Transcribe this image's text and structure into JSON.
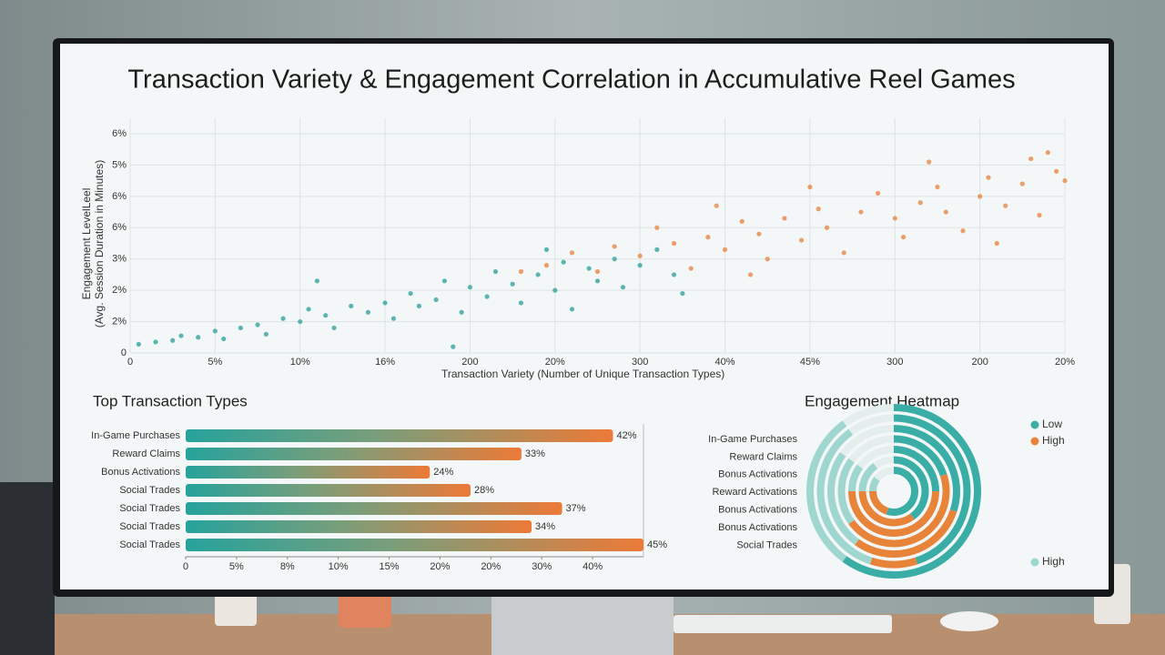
{
  "chart_data": [
    {
      "type": "scatter",
      "title": "Transaction Variety & Engagement Correlation in Accumulative Reel Games",
      "x_label": "Transaction Variety (Number of Unique Transaction Types)",
      "y_label": [
        "Engagement LevelLeel",
        "(Avg. Session Duration in Minutes)"
      ],
      "xlim": [
        0,
        11
      ],
      "ylim": [
        0,
        7
      ],
      "grid": true,
      "xticks": [
        0,
        {
          "value": 1,
          "label": "5%"
        },
        {
          "value": 2,
          "label": "10%"
        },
        {
          "value": 3,
          "label": "16%"
        },
        {
          "value": 4,
          "label": "200"
        },
        {
          "value": 5,
          "label": "20%"
        },
        {
          "value": 6,
          "label": "300"
        },
        {
          "value": 7,
          "label": "40%"
        },
        {
          "value": 8,
          "label": "45%"
        },
        {
          "value": 9,
          "label": "300"
        },
        {
          "value": 10,
          "label": "200"
        },
        {
          "value": 11,
          "label": "20%"
        }
      ],
      "yticks": [
        0,
        {
          "value": 1,
          "label": "2%"
        },
        {
          "value": 2,
          "label": "2%"
        },
        {
          "value": 3,
          "label": "3%"
        },
        {
          "value": 4,
          "label": "6%"
        },
        {
          "value": 5,
          "label": "6%"
        },
        {
          "value": 6,
          "label": "5%"
        },
        {
          "value": 7,
          "label": "6%"
        }
      ],
      "series": [
        {
          "color": "#2a9d98",
          "x": [
            0.1,
            0.3,
            0.5,
            0.6,
            0.8,
            1.0,
            1.1,
            1.3,
            1.5,
            1.6,
            1.8,
            2.0,
            2.1,
            2.3,
            2.4,
            2.6,
            2.8,
            3.0,
            3.1,
            3.3,
            3.4,
            3.6,
            3.7,
            3.9,
            4.0,
            4.2,
            4.3,
            4.5,
            4.6,
            4.8,
            5.0,
            5.1,
            5.2,
            5.4,
            5.5,
            5.7,
            5.8,
            6.0,
            6.2,
            6.4,
            3.8,
            2.2,
            4.9,
            6.5
          ],
          "values": [
            0.28,
            0.35,
            0.4,
            0.55,
            0.5,
            0.7,
            0.45,
            0.8,
            0.9,
            0.6,
            1.1,
            1.0,
            1.4,
            1.2,
            0.8,
            1.5,
            1.3,
            1.6,
            1.1,
            1.9,
            1.5,
            1.7,
            2.3,
            1.3,
            2.1,
            1.8,
            2.6,
            2.2,
            1.6,
            2.5,
            2.0,
            2.9,
            1.4,
            2.7,
            2.3,
            3.0,
            2.1,
            2.8,
            3.3,
            2.5,
            0.2,
            2.3,
            3.3,
            1.9
          ]
        },
        {
          "color": "#e8803a",
          "x": [
            4.6,
            4.9,
            5.2,
            5.5,
            5.7,
            6.0,
            6.2,
            6.4,
            6.6,
            6.8,
            7.0,
            7.2,
            7.4,
            7.5,
            7.7,
            7.9,
            8.1,
            8.2,
            8.4,
            8.6,
            8.8,
            9.0,
            9.1,
            9.3,
            9.5,
            9.6,
            9.8,
            10.0,
            10.1,
            10.3,
            10.5,
            10.6,
            10.7,
            10.9,
            11.0,
            10.2,
            8.0,
            9.4,
            10.8,
            7.3,
            6.9
          ],
          "values": [
            2.6,
            2.8,
            3.2,
            2.6,
            3.4,
            3.1,
            4.0,
            3.5,
            2.7,
            3.7,
            3.3,
            4.2,
            3.8,
            3.0,
            4.3,
            3.6,
            4.6,
            4.0,
            3.2,
            4.5,
            5.1,
            4.3,
            3.7,
            4.8,
            5.3,
            4.5,
            3.9,
            5.0,
            5.6,
            4.7,
            5.4,
            6.2,
            4.4,
            5.8,
            5.5,
            3.5,
            5.3,
            6.1,
            6.4,
            2.5,
            4.7
          ]
        }
      ]
    },
    {
      "type": "hbar",
      "title": "Top Transaction Types",
      "categories": [
        "In-Game Purchases",
        "Reward Claims",
        "Bonus Activations",
        "Social Trades",
        "Social Trades",
        "Social Trades",
        "Social Trades"
      ],
      "values": [
        42,
        33,
        24,
        28,
        37,
        34,
        45
      ],
      "value_labels": [
        "42%",
        "33%",
        "24%",
        "28%",
        "37%",
        "34%",
        "45%"
      ],
      "colors": [
        "#26a29c",
        "#7a9e7a",
        "#ec7a38"
      ],
      "xlim": [
        0,
        45
      ],
      "xticks": [
        0,
        {
          "value": 5,
          "label": "5%"
        },
        {
          "value": 10,
          "label": "8%"
        },
        {
          "value": 15,
          "label": "10%"
        },
        {
          "value": 20,
          "label": "15%"
        },
        {
          "value": 25,
          "label": "20%"
        },
        {
          "value": 30,
          "label": "20%"
        },
        {
          "value": 35,
          "label": "30%"
        },
        {
          "value": 40,
          "label": "40%"
        }
      ]
    },
    {
      "type": "radial",
      "title": "Engagement Heatmap",
      "categories": [
        "In-Game Purchases",
        "Reward Claims",
        "Bonus Activations",
        "Reward Activations",
        "Bonus Activations",
        "Bonus Activations",
        "Social Trades"
      ],
      "series": [
        {
          "name": "Low",
          "color": "#3aaea6",
          "values": [
            60,
            45,
            30,
            20,
            25,
            40,
            55
          ]
        },
        {
          "name": "High",
          "color": "#e8843a",
          "values": [
            0,
            10,
            30,
            45,
            50,
            35,
            20
          ]
        },
        {
          "name": "High",
          "color": "#9fd6cf",
          "values": [
            30,
            35,
            25,
            20,
            10,
            15,
            10
          ]
        }
      ]
    }
  ]
}
